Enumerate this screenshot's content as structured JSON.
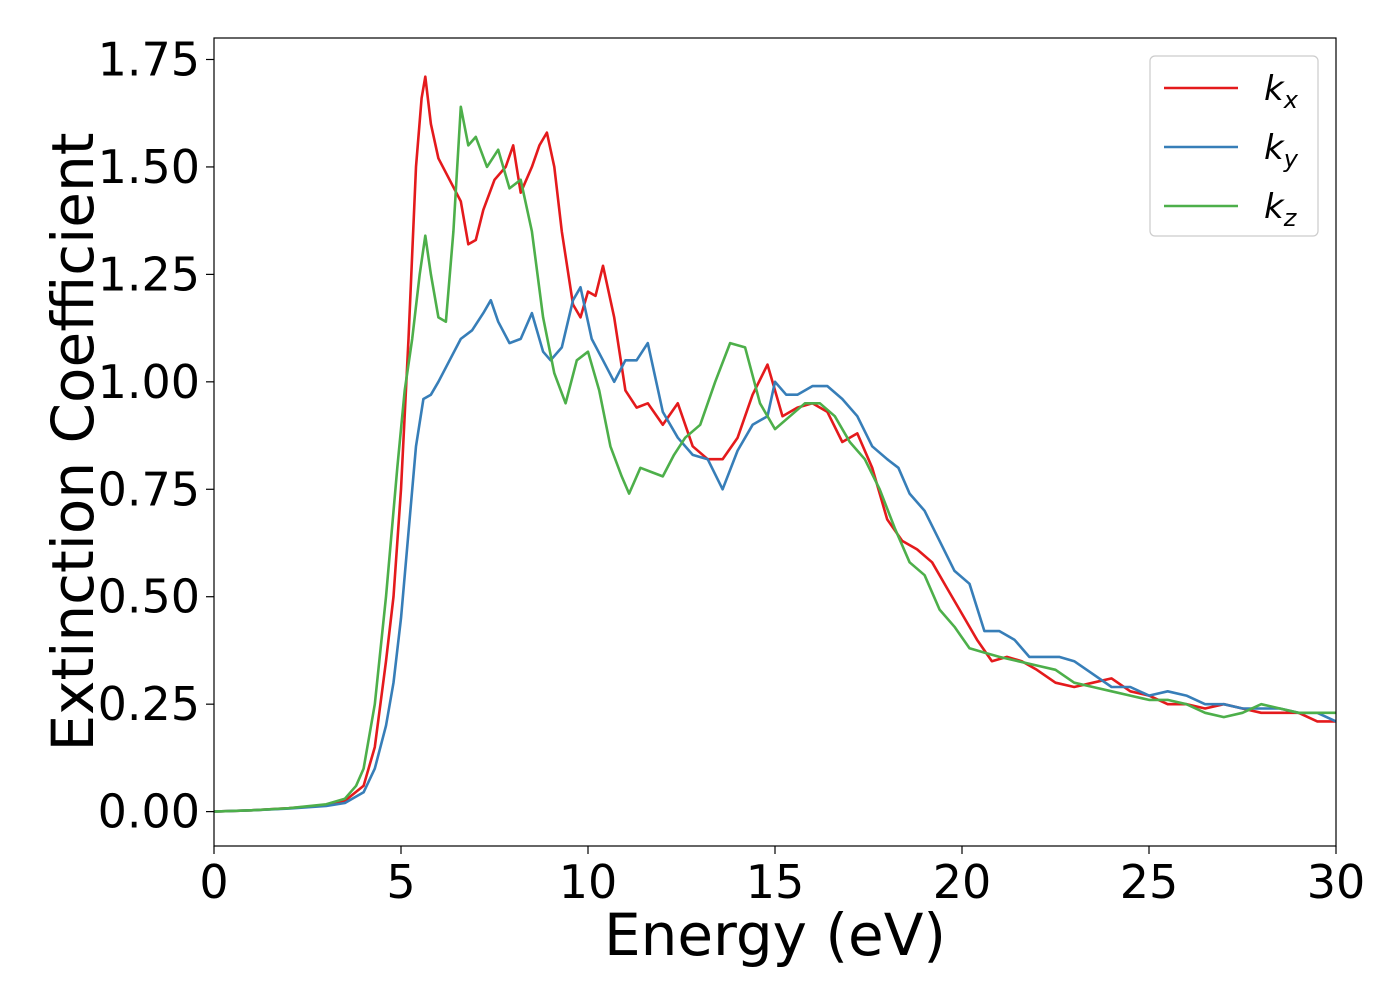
{
  "chart_data": {
    "type": "line",
    "xlabel": "Energy (eV)",
    "ylabel": "Extinction Coefficient",
    "xlim": [
      0,
      30
    ],
    "ylim": [
      -0.08,
      1.8
    ],
    "xticks": [
      0,
      5,
      10,
      15,
      20,
      25,
      30
    ],
    "xtick_labels": [
      "0",
      "5",
      "10",
      "15",
      "20",
      "25",
      "30"
    ],
    "yticks": [
      0.0,
      0.25,
      0.5,
      0.75,
      1.0,
      1.25,
      1.5,
      1.75
    ],
    "ytick_labels": [
      "0.00",
      "0.25",
      "0.50",
      "0.75",
      "1.00",
      "1.25",
      "1.50",
      "1.75"
    ],
    "grid": false,
    "legend_position": "top-right",
    "series": [
      {
        "name": "k_x",
        "label_base": "k",
        "label_sub": "x",
        "color": "#e41a1c",
        "x": [
          0,
          1,
          2,
          3,
          3.5,
          4,
          4.3,
          4.6,
          4.8,
          5.0,
          5.2,
          5.4,
          5.55,
          5.65,
          5.8,
          6.0,
          6.3,
          6.6,
          6.8,
          7.0,
          7.2,
          7.5,
          7.8,
          8.0,
          8.2,
          8.5,
          8.7,
          8.9,
          9.1,
          9.3,
          9.6,
          9.8,
          10.0,
          10.2,
          10.4,
          10.7,
          11.0,
          11.3,
          11.6,
          12.0,
          12.4,
          12.8,
          13.2,
          13.6,
          14.0,
          14.4,
          14.8,
          15.2,
          15.6,
          16.0,
          16.4,
          16.8,
          17.2,
          17.6,
          18.0,
          18.4,
          18.8,
          19.2,
          19.6,
          20.0,
          20.4,
          20.8,
          21.2,
          21.6,
          22.0,
          22.5,
          23.0,
          23.5,
          24.0,
          24.5,
          25.0,
          25.5,
          26.0,
          26.5,
          27.0,
          27.5,
          28.0,
          28.5,
          29.0,
          29.5,
          30.0
        ],
        "y": [
          0.0,
          0.003,
          0.008,
          0.015,
          0.025,
          0.06,
          0.15,
          0.35,
          0.5,
          0.75,
          1.1,
          1.5,
          1.66,
          1.71,
          1.6,
          1.52,
          1.47,
          1.42,
          1.32,
          1.33,
          1.4,
          1.47,
          1.5,
          1.55,
          1.44,
          1.5,
          1.55,
          1.58,
          1.5,
          1.35,
          1.18,
          1.15,
          1.21,
          1.2,
          1.27,
          1.15,
          0.98,
          0.94,
          0.95,
          0.9,
          0.95,
          0.85,
          0.82,
          0.82,
          0.87,
          0.97,
          1.04,
          0.92,
          0.94,
          0.95,
          0.93,
          0.86,
          0.88,
          0.8,
          0.68,
          0.63,
          0.61,
          0.58,
          0.52,
          0.46,
          0.4,
          0.35,
          0.36,
          0.35,
          0.33,
          0.3,
          0.29,
          0.3,
          0.31,
          0.28,
          0.27,
          0.25,
          0.25,
          0.24,
          0.25,
          0.24,
          0.23,
          0.23,
          0.23,
          0.21,
          0.21
        ]
      },
      {
        "name": "k_y",
        "label_base": "k",
        "label_sub": "y",
        "color": "#377eb8",
        "x": [
          0,
          1,
          2,
          3,
          3.5,
          4,
          4.3,
          4.6,
          4.8,
          5.0,
          5.2,
          5.4,
          5.6,
          5.8,
          6.0,
          6.3,
          6.6,
          6.9,
          7.2,
          7.4,
          7.6,
          7.9,
          8.2,
          8.5,
          8.8,
          9.0,
          9.3,
          9.6,
          9.8,
          10.1,
          10.4,
          10.7,
          11.0,
          11.3,
          11.6,
          12.0,
          12.4,
          12.8,
          13.2,
          13.6,
          14.0,
          14.4,
          14.8,
          15.0,
          15.3,
          15.6,
          16.0,
          16.4,
          16.8,
          17.2,
          17.6,
          18.0,
          18.3,
          18.6,
          19.0,
          19.4,
          19.8,
          20.2,
          20.6,
          21.0,
          21.4,
          21.8,
          22.2,
          22.6,
          23.0,
          23.5,
          24.0,
          24.5,
          25.0,
          25.5,
          26.0,
          26.5,
          27.0,
          27.5,
          28.0,
          28.5,
          29.0,
          29.5,
          30.0
        ],
        "y": [
          0.0,
          0.003,
          0.007,
          0.013,
          0.02,
          0.045,
          0.1,
          0.2,
          0.3,
          0.45,
          0.65,
          0.85,
          0.96,
          0.97,
          1.0,
          1.05,
          1.1,
          1.12,
          1.16,
          1.19,
          1.14,
          1.09,
          1.1,
          1.16,
          1.07,
          1.05,
          1.08,
          1.19,
          1.22,
          1.1,
          1.05,
          1.0,
          1.05,
          1.05,
          1.09,
          0.93,
          0.87,
          0.83,
          0.82,
          0.75,
          0.84,
          0.9,
          0.92,
          1.0,
          0.97,
          0.97,
          0.99,
          0.99,
          0.96,
          0.92,
          0.85,
          0.82,
          0.8,
          0.74,
          0.7,
          0.63,
          0.56,
          0.53,
          0.42,
          0.42,
          0.4,
          0.36,
          0.36,
          0.36,
          0.35,
          0.32,
          0.29,
          0.29,
          0.27,
          0.28,
          0.27,
          0.25,
          0.25,
          0.24,
          0.24,
          0.24,
          0.23,
          0.23,
          0.21
        ]
      },
      {
        "name": "k_z",
        "label_base": "k",
        "label_sub": "z",
        "color": "#4daf4a",
        "x": [
          0,
          1,
          2,
          3,
          3.5,
          3.8,
          4.0,
          4.3,
          4.6,
          4.9,
          5.1,
          5.3,
          5.5,
          5.65,
          5.8,
          6.0,
          6.2,
          6.4,
          6.6,
          6.8,
          7.0,
          7.3,
          7.6,
          7.9,
          8.2,
          8.5,
          8.8,
          9.1,
          9.4,
          9.7,
          10.0,
          10.3,
          10.6,
          10.9,
          11.1,
          11.4,
          11.7,
          12.0,
          12.3,
          12.6,
          13.0,
          13.4,
          13.8,
          14.2,
          14.6,
          15.0,
          15.4,
          15.8,
          16.2,
          16.6,
          17.0,
          17.4,
          17.8,
          18.2,
          18.6,
          19.0,
          19.4,
          19.8,
          20.2,
          20.6,
          21.0,
          21.5,
          22.0,
          22.5,
          23.0,
          23.5,
          24.0,
          24.5,
          25.0,
          25.5,
          26.0,
          26.5,
          27.0,
          27.5,
          28.0,
          28.5,
          29.0,
          29.5,
          30.0
        ],
        "y": [
          0.0,
          0.003,
          0.008,
          0.017,
          0.03,
          0.06,
          0.1,
          0.25,
          0.5,
          0.8,
          0.98,
          1.1,
          1.25,
          1.34,
          1.25,
          1.15,
          1.14,
          1.35,
          1.64,
          1.55,
          1.57,
          1.5,
          1.54,
          1.45,
          1.47,
          1.35,
          1.15,
          1.02,
          0.95,
          1.05,
          1.07,
          0.98,
          0.85,
          0.78,
          0.74,
          0.8,
          0.79,
          0.78,
          0.83,
          0.87,
          0.9,
          1.0,
          1.09,
          1.08,
          0.95,
          0.89,
          0.92,
          0.95,
          0.95,
          0.92,
          0.86,
          0.82,
          0.75,
          0.66,
          0.58,
          0.55,
          0.47,
          0.43,
          0.38,
          0.37,
          0.36,
          0.35,
          0.34,
          0.33,
          0.3,
          0.29,
          0.28,
          0.27,
          0.26,
          0.26,
          0.25,
          0.23,
          0.22,
          0.23,
          0.25,
          0.24,
          0.23,
          0.23,
          0.23
        ]
      }
    ]
  }
}
